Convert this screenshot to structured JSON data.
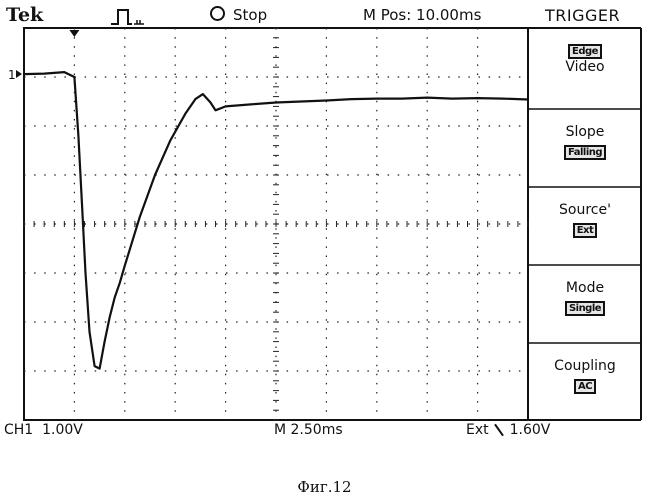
{
  "header": {
    "brand": "Tek",
    "run_status": "Stop",
    "horizontal_position": "M Pos: 10.00ms",
    "menu_title": "TRIGGER"
  },
  "trigger_menu": {
    "type": {
      "value": "Edge",
      "label": "Video"
    },
    "slope": {
      "label": "Slope",
      "value": "Falling"
    },
    "source": {
      "label": "Source'",
      "value": "Ext"
    },
    "mode": {
      "label": "Mode",
      "value": "Single"
    },
    "coupling": {
      "label": "Coupling",
      "value": "AC"
    }
  },
  "status": {
    "channel": "CH1",
    "volts_per_div": "1.00V",
    "timebase": "M 2.50ms",
    "trigger_source": "Ext",
    "trigger_level": "1.60V"
  },
  "caption": "Фиг.12",
  "chart_data": {
    "type": "line",
    "title": "",
    "xlabel": "",
    "ylabel": "",
    "grid": true,
    "xlim": [
      0,
      10
    ],
    "ylim": [
      -4,
      4
    ],
    "ground_marker": "1",
    "series": [
      {
        "x": [
          0,
          0.4,
          0.8,
          1.0,
          1.08,
          1.15,
          1.22,
          1.3,
          1.4,
          1.5,
          1.6,
          1.7,
          1.8,
          1.9,
          2.0,
          2.3,
          2.6,
          2.9,
          3.2,
          3.4,
          3.55,
          3.7,
          3.8,
          4.0,
          4.5,
          5.0,
          5.5,
          6.0,
          6.5,
          7.0,
          7.5,
          8.0,
          8.5,
          9.0,
          9.5,
          10.0
        ],
        "y": [
          3.06,
          3.07,
          3.1,
          3.0,
          1.8,
          0.4,
          -1.0,
          -2.2,
          -2.9,
          -2.95,
          -2.4,
          -1.9,
          -1.5,
          -1.2,
          -0.85,
          0.15,
          1.0,
          1.7,
          2.25,
          2.55,
          2.65,
          2.48,
          2.32,
          2.4,
          2.44,
          2.48,
          2.5,
          2.52,
          2.55,
          2.56,
          2.56,
          2.58,
          2.56,
          2.57,
          2.56,
          2.54
        ]
      }
    ]
  }
}
